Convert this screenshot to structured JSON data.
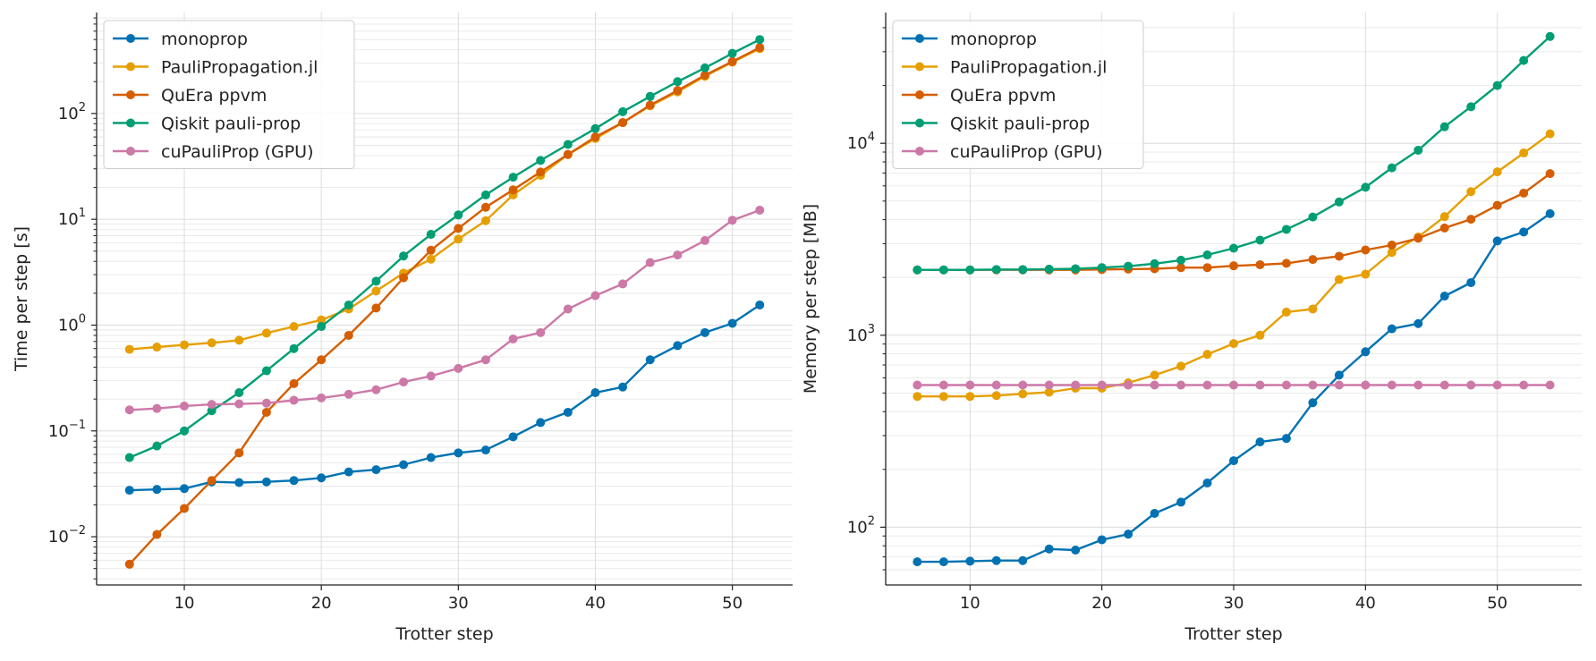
{
  "chart_data": [
    {
      "type": "line",
      "xlabel": "Trotter step",
      "ylabel": "Time per step [s]",
      "yscale": "log",
      "xlim": [
        3.6,
        54.4
      ],
      "ylim": [
        0.0035,
        900
      ],
      "xticks": [
        10,
        20,
        30,
        40,
        50
      ],
      "yticks": [
        -2,
        -1,
        0,
        1,
        2
      ],
      "grid": true,
      "legend_position": "top-left",
      "x": [
        6,
        8,
        10,
        12,
        14,
        16,
        18,
        20,
        22,
        24,
        26,
        28,
        30,
        32,
        34,
        36,
        38,
        40,
        42,
        44,
        46,
        48,
        50,
        52
      ],
      "series": [
        {
          "name": "monoprop",
          "color": "#0072b2",
          "values": [
            0.0275,
            0.028,
            0.0285,
            0.033,
            0.0325,
            0.033,
            0.034,
            0.036,
            0.041,
            0.043,
            0.048,
            0.056,
            0.062,
            0.066,
            0.088,
            0.12,
            0.15,
            0.23,
            0.26,
            0.47,
            0.64,
            0.85,
            1.04,
            1.55
          ]
        },
        {
          "name": "PauliPropagation.jl",
          "color": "#e69f00",
          "values": [
            0.59,
            0.62,
            0.65,
            0.68,
            0.72,
            0.84,
            0.97,
            1.12,
            1.42,
            2.1,
            3.1,
            4.2,
            6.5,
            9.7,
            17,
            26,
            41,
            58,
            82,
            118,
            160,
            225,
            305,
            410
          ]
        },
        {
          "name": "QuEra ppvm",
          "color": "#d55e00",
          "values": [
            0.0055,
            0.0105,
            0.0185,
            0.034,
            0.062,
            0.15,
            0.28,
            0.47,
            0.8,
            1.45,
            2.8,
            5.1,
            8.2,
            13,
            19,
            28,
            41,
            60,
            82,
            120,
            165,
            230,
            310,
            420
          ]
        },
        {
          "name": "Qiskit pauli-prop",
          "color": "#009e73",
          "values": [
            0.056,
            0.072,
            0.1,
            0.155,
            0.23,
            0.37,
            0.6,
            0.97,
            1.55,
            2.6,
            4.5,
            7.2,
            11,
            17,
            25,
            36,
            51,
            72,
            104,
            145,
            200,
            270,
            370,
            500
          ]
        },
        {
          "name": "cuPauliProp (GPU)",
          "color": "#cc79a7",
          "values": [
            0.158,
            0.163,
            0.172,
            0.178,
            0.18,
            0.183,
            0.195,
            0.205,
            0.222,
            0.245,
            0.29,
            0.33,
            0.39,
            0.47,
            0.74,
            0.85,
            1.42,
            1.9,
            2.45,
            3.9,
            4.6,
            6.3,
            9.8,
            12.2
          ]
        }
      ]
    },
    {
      "type": "line",
      "xlabel": "Trotter step",
      "ylabel": "Memory per step [MB]",
      "yscale": "log",
      "xlim": [
        3.6,
        56.4
      ],
      "ylim": [
        50,
        48000
      ],
      "xticks": [
        10,
        20,
        30,
        40,
        50
      ],
      "yticks": [
        2,
        3,
        4
      ],
      "grid": true,
      "legend_position": "top-left",
      "x": [
        6,
        8,
        10,
        12,
        14,
        16,
        18,
        20,
        22,
        24,
        26,
        28,
        30,
        32,
        34,
        36,
        38,
        40,
        42,
        44,
        46,
        48,
        50,
        52,
        54
      ],
      "series": [
        {
          "name": "monoprop",
          "color": "#0072b2",
          "values": [
            66,
            66,
            66.5,
            67,
            67,
            77,
            76,
            86,
            92,
            118,
            135,
            170,
            222,
            278,
            290,
            445,
            620,
            820,
            1080,
            1150,
            1600,
            1880,
            3100,
            3450,
            4300
          ]
        },
        {
          "name": "PauliPropagation.jl",
          "color": "#e69f00",
          "values": [
            480,
            480,
            480,
            485,
            495,
            505,
            530,
            530,
            565,
            620,
            690,
            795,
            905,
            1000,
            1320,
            1370,
            1950,
            2080,
            2700,
            3250,
            4150,
            5600,
            7100,
            8900,
            11200
          ]
        },
        {
          "name": "QuEra ppvm",
          "color": "#d55e00",
          "values": [
            2190,
            2190,
            2190,
            2190,
            2190,
            2190,
            2190,
            2200,
            2210,
            2220,
            2250,
            2250,
            2300,
            2330,
            2370,
            2480,
            2580,
            2780,
            2950,
            3200,
            3620,
            4020,
            4750,
            5500,
            6950
          ]
        },
        {
          "name": "Qiskit pauli-prop",
          "color": "#009e73",
          "values": [
            2190,
            2190,
            2190,
            2200,
            2200,
            2210,
            2220,
            2250,
            2290,
            2360,
            2460,
            2620,
            2840,
            3130,
            3560,
            4130,
            4950,
            5900,
            7450,
            9200,
            12200,
            15500,
            20000,
            27000,
            36000
          ]
        },
        {
          "name": "cuPauliProp (GPU)",
          "color": "#cc79a7",
          "values": [
            550,
            550,
            550,
            550,
            550,
            550,
            550,
            550,
            550,
            550,
            550,
            550,
            550,
            550,
            550,
            550,
            550,
            550,
            550,
            550,
            550,
            550,
            550,
            550,
            550
          ]
        }
      ]
    }
  ]
}
